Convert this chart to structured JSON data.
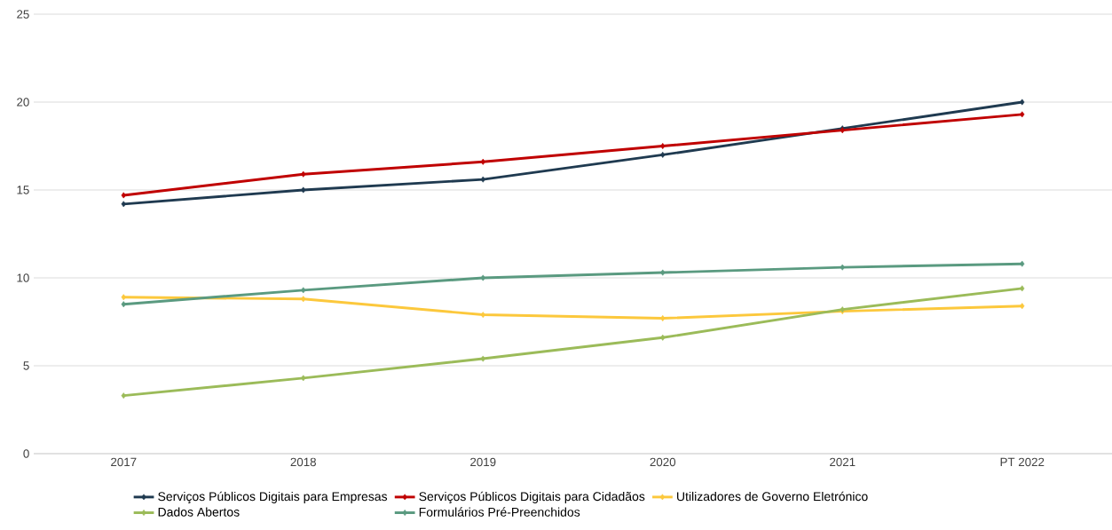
{
  "chart_data": {
    "type": "line",
    "categories": [
      "2017",
      "2018",
      "2019",
      "2020",
      "2021",
      "PT 2022"
    ],
    "series": [
      {
        "name": "Serviços Públicos Digitais para Empresas",
        "color": "#1f3a50",
        "values": [
          14.2,
          15.0,
          15.6,
          17.0,
          18.5,
          20.0
        ]
      },
      {
        "name": "Serviços Públicos Digitais para Cidadãos",
        "color": "#c00000",
        "values": [
          14.7,
          15.9,
          16.6,
          17.5,
          18.4,
          19.3
        ]
      },
      {
        "name": "Utilizadores de Governo Eletrónico",
        "color": "#fcc83c",
        "values": [
          8.9,
          8.8,
          7.9,
          7.7,
          8.1,
          8.4
        ]
      },
      {
        "name": "Dados Abertos",
        "color": "#9bbb59",
        "values": [
          3.3,
          4.3,
          5.4,
          6.6,
          8.2,
          9.4
        ]
      },
      {
        "name": "Formulários Pré-Preenchidos",
        "color": "#5a9a80",
        "values": [
          8.5,
          9.3,
          10.0,
          10.3,
          10.6,
          10.8
        ]
      }
    ],
    "ylim": [
      0,
      25
    ],
    "yticks": [
      0,
      5,
      10,
      15,
      20,
      25
    ],
    "grid": "y",
    "legend": "bottom",
    "marker": "diamond",
    "line_style": "solid"
  }
}
